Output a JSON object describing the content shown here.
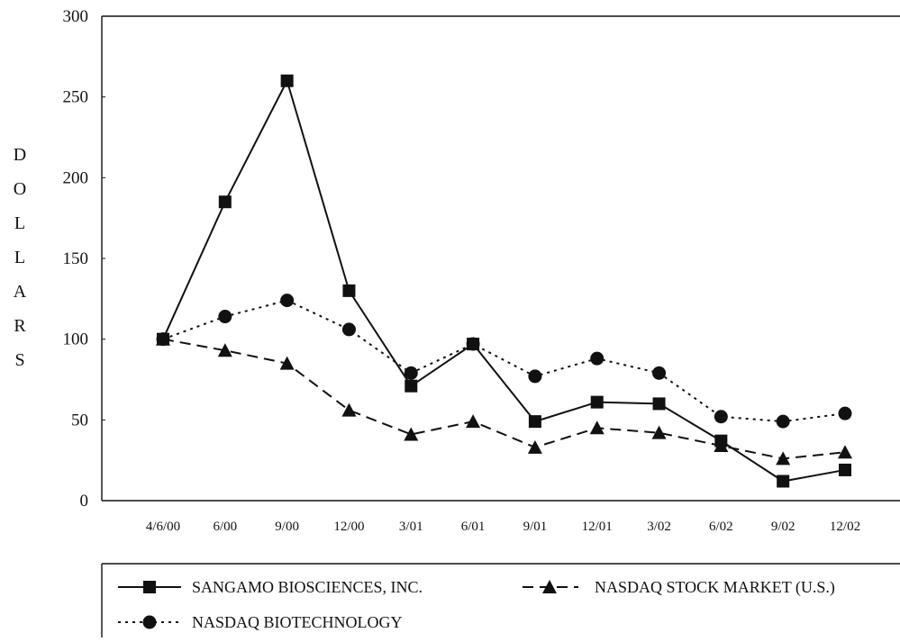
{
  "chart_data": {
    "type": "line",
    "title": "",
    "xlabel": "",
    "ylabel": "DOLLARS",
    "categories": [
      "4/6/00",
      "6/00",
      "9/00",
      "12/00",
      "3/01",
      "6/01",
      "9/01",
      "12/01",
      "3/02",
      "6/02",
      "9/02",
      "12/02"
    ],
    "ylim": [
      0,
      300
    ],
    "yticks": [
      0,
      50,
      100,
      150,
      200,
      250,
      300
    ],
    "grid": false,
    "legend_position": "bottom",
    "series": [
      {
        "name": "SANGAMO BIOSCIENCES, INC.",
        "marker": "square",
        "line_style": "solid",
        "color": "#111111",
        "values": [
          100,
          185,
          260,
          130,
          71,
          97,
          49,
          61,
          60,
          37,
          12,
          19
        ]
      },
      {
        "name": "NASDAQ STOCK MARKET (U.S.)",
        "marker": "triangle",
        "line_style": "dashed",
        "color": "#111111",
        "values": [
          100,
          93,
          85,
          56,
          41,
          49,
          33,
          45,
          42,
          34,
          26,
          30
        ]
      },
      {
        "name": "NASDAQ BIOTECHNOLOGY",
        "marker": "circle",
        "line_style": "dotted",
        "color": "#111111",
        "values": [
          100,
          114,
          124,
          106,
          79,
          97,
          77,
          88,
          79,
          52,
          49,
          54
        ]
      }
    ]
  }
}
